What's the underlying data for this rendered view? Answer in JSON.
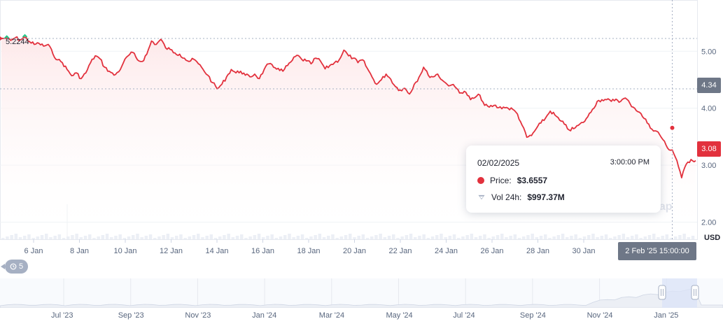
{
  "chart_data": {
    "type": "line",
    "x_ticks": [
      "6 Jan",
      "8 Jan",
      "10 Jan",
      "12 Jan",
      "14 Jan",
      "16 Jan",
      "18 Jan",
      "20 Jan",
      "22 Jan",
      "24 Jan",
      "26 Jan",
      "28 Jan",
      "30 Jan"
    ],
    "y_ticks": [
      "5.00",
      "4.00",
      "3.00",
      "2.00"
    ],
    "y_range": [
      1.7,
      5.9
    ],
    "y_axis_unit": "USD",
    "start_price_label": "5.2244",
    "start_price": 5.2244,
    "current_price_badge": "3.08",
    "current_price": 3.08,
    "crosshair_price_badge": "4.34",
    "crosshair_price": 4.34,
    "cursor_date_label": "2 Feb '25 15:00:00",
    "series": [
      {
        "values": [
          5.2244,
          5.23,
          5.19,
          5.24,
          5.2,
          5.25,
          5.17,
          5.12,
          5.14,
          5.09,
          5.12,
          4.95,
          4.85,
          4.8,
          4.68,
          4.57,
          4.62,
          4.52,
          4.62,
          4.8,
          4.92,
          4.87,
          4.72,
          4.65,
          4.58,
          4.64,
          4.8,
          4.92,
          4.98,
          4.85,
          4.82,
          4.95,
          5.18,
          5.12,
          5.21,
          5.06,
          5.03,
          4.97,
          4.95,
          4.88,
          4.82,
          4.86,
          4.78,
          4.68,
          4.58,
          4.45,
          4.34,
          4.42,
          4.55,
          4.68,
          4.62,
          4.65,
          4.58,
          4.55,
          4.6,
          4.52,
          4.68,
          4.78,
          4.72,
          4.7,
          4.65,
          4.75,
          4.84,
          4.93,
          4.86,
          4.83,
          4.78,
          4.88,
          4.83,
          4.69,
          4.75,
          4.8,
          4.85,
          5.02,
          4.92,
          4.88,
          4.8,
          4.85,
          4.7,
          4.55,
          4.42,
          4.5,
          4.6,
          4.51,
          4.38,
          4.32,
          4.35,
          4.25,
          4.42,
          4.54,
          4.72,
          4.58,
          4.55,
          4.6,
          4.49,
          4.42,
          4.41,
          4.35,
          4.27,
          4.28,
          4.15,
          4.19,
          4.23,
          4.05,
          4.02,
          4.05,
          4.01,
          4.02,
          4.0,
          3.98,
          3.9,
          3.7,
          3.49,
          3.52,
          3.64,
          3.74,
          3.83,
          3.95,
          3.88,
          3.79,
          3.72,
          3.62,
          3.64,
          3.7,
          3.75,
          3.85,
          3.98,
          4.12,
          4.15,
          4.15,
          4.12,
          4.16,
          4.12,
          4.18,
          4.08,
          4.0,
          3.93,
          3.82,
          3.72,
          3.6,
          3.58,
          3.45,
          3.3,
          3.2667,
          3.08,
          2.78,
          3.02,
          3.1,
          3.08
        ]
      }
    ],
    "highlight_point": {
      "date": "02/02/2025",
      "price": 3.6557
    },
    "navigator": {
      "x_ticks": [
        "Jul '23",
        "Sep '23",
        "Nov '23",
        "Jan '24",
        "Mar '24",
        "May '24",
        "Jul '24",
        "Sep '24",
        "Nov '24",
        "Jan '25"
      ]
    },
    "colors": {
      "line": "#e2313d",
      "line_up": "#16c784",
      "fill_top": "#fde9ea",
      "badge_grey": "#6e7787",
      "badge_red": "#e2313d"
    }
  },
  "tooltip": {
    "date": "02/02/2025",
    "time": "3:00:00 PM",
    "price_label": "Price:",
    "price_value": "$3.6557",
    "vol_label": "Vol 24h:",
    "vol_value": "$997.37M"
  },
  "zoom_button": {
    "count": "5",
    "icon": "history-icon"
  },
  "watermark": "tCap"
}
